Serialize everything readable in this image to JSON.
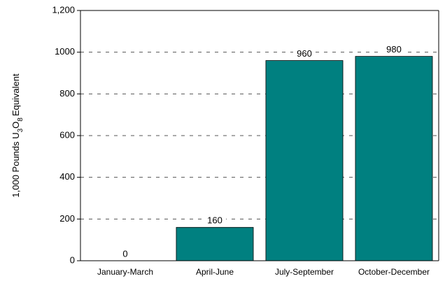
{
  "chart_data": {
    "type": "bar",
    "ylabel": [
      "1,000 Pounds U",
      "3",
      "O",
      "8",
      "Equivalent"
    ],
    "categories": [
      "January-March",
      "April-June",
      "July-September",
      "October-December"
    ],
    "values": [
      0,
      160,
      960,
      980
    ],
    "color": "#008080",
    "ylim": [
      0,
      1200
    ],
    "yticks": [
      0,
      200,
      400,
      600,
      800,
      1000,
      {
        "value": 1200,
        "label": "1,200"
      }
    ],
    "grid": true
  }
}
